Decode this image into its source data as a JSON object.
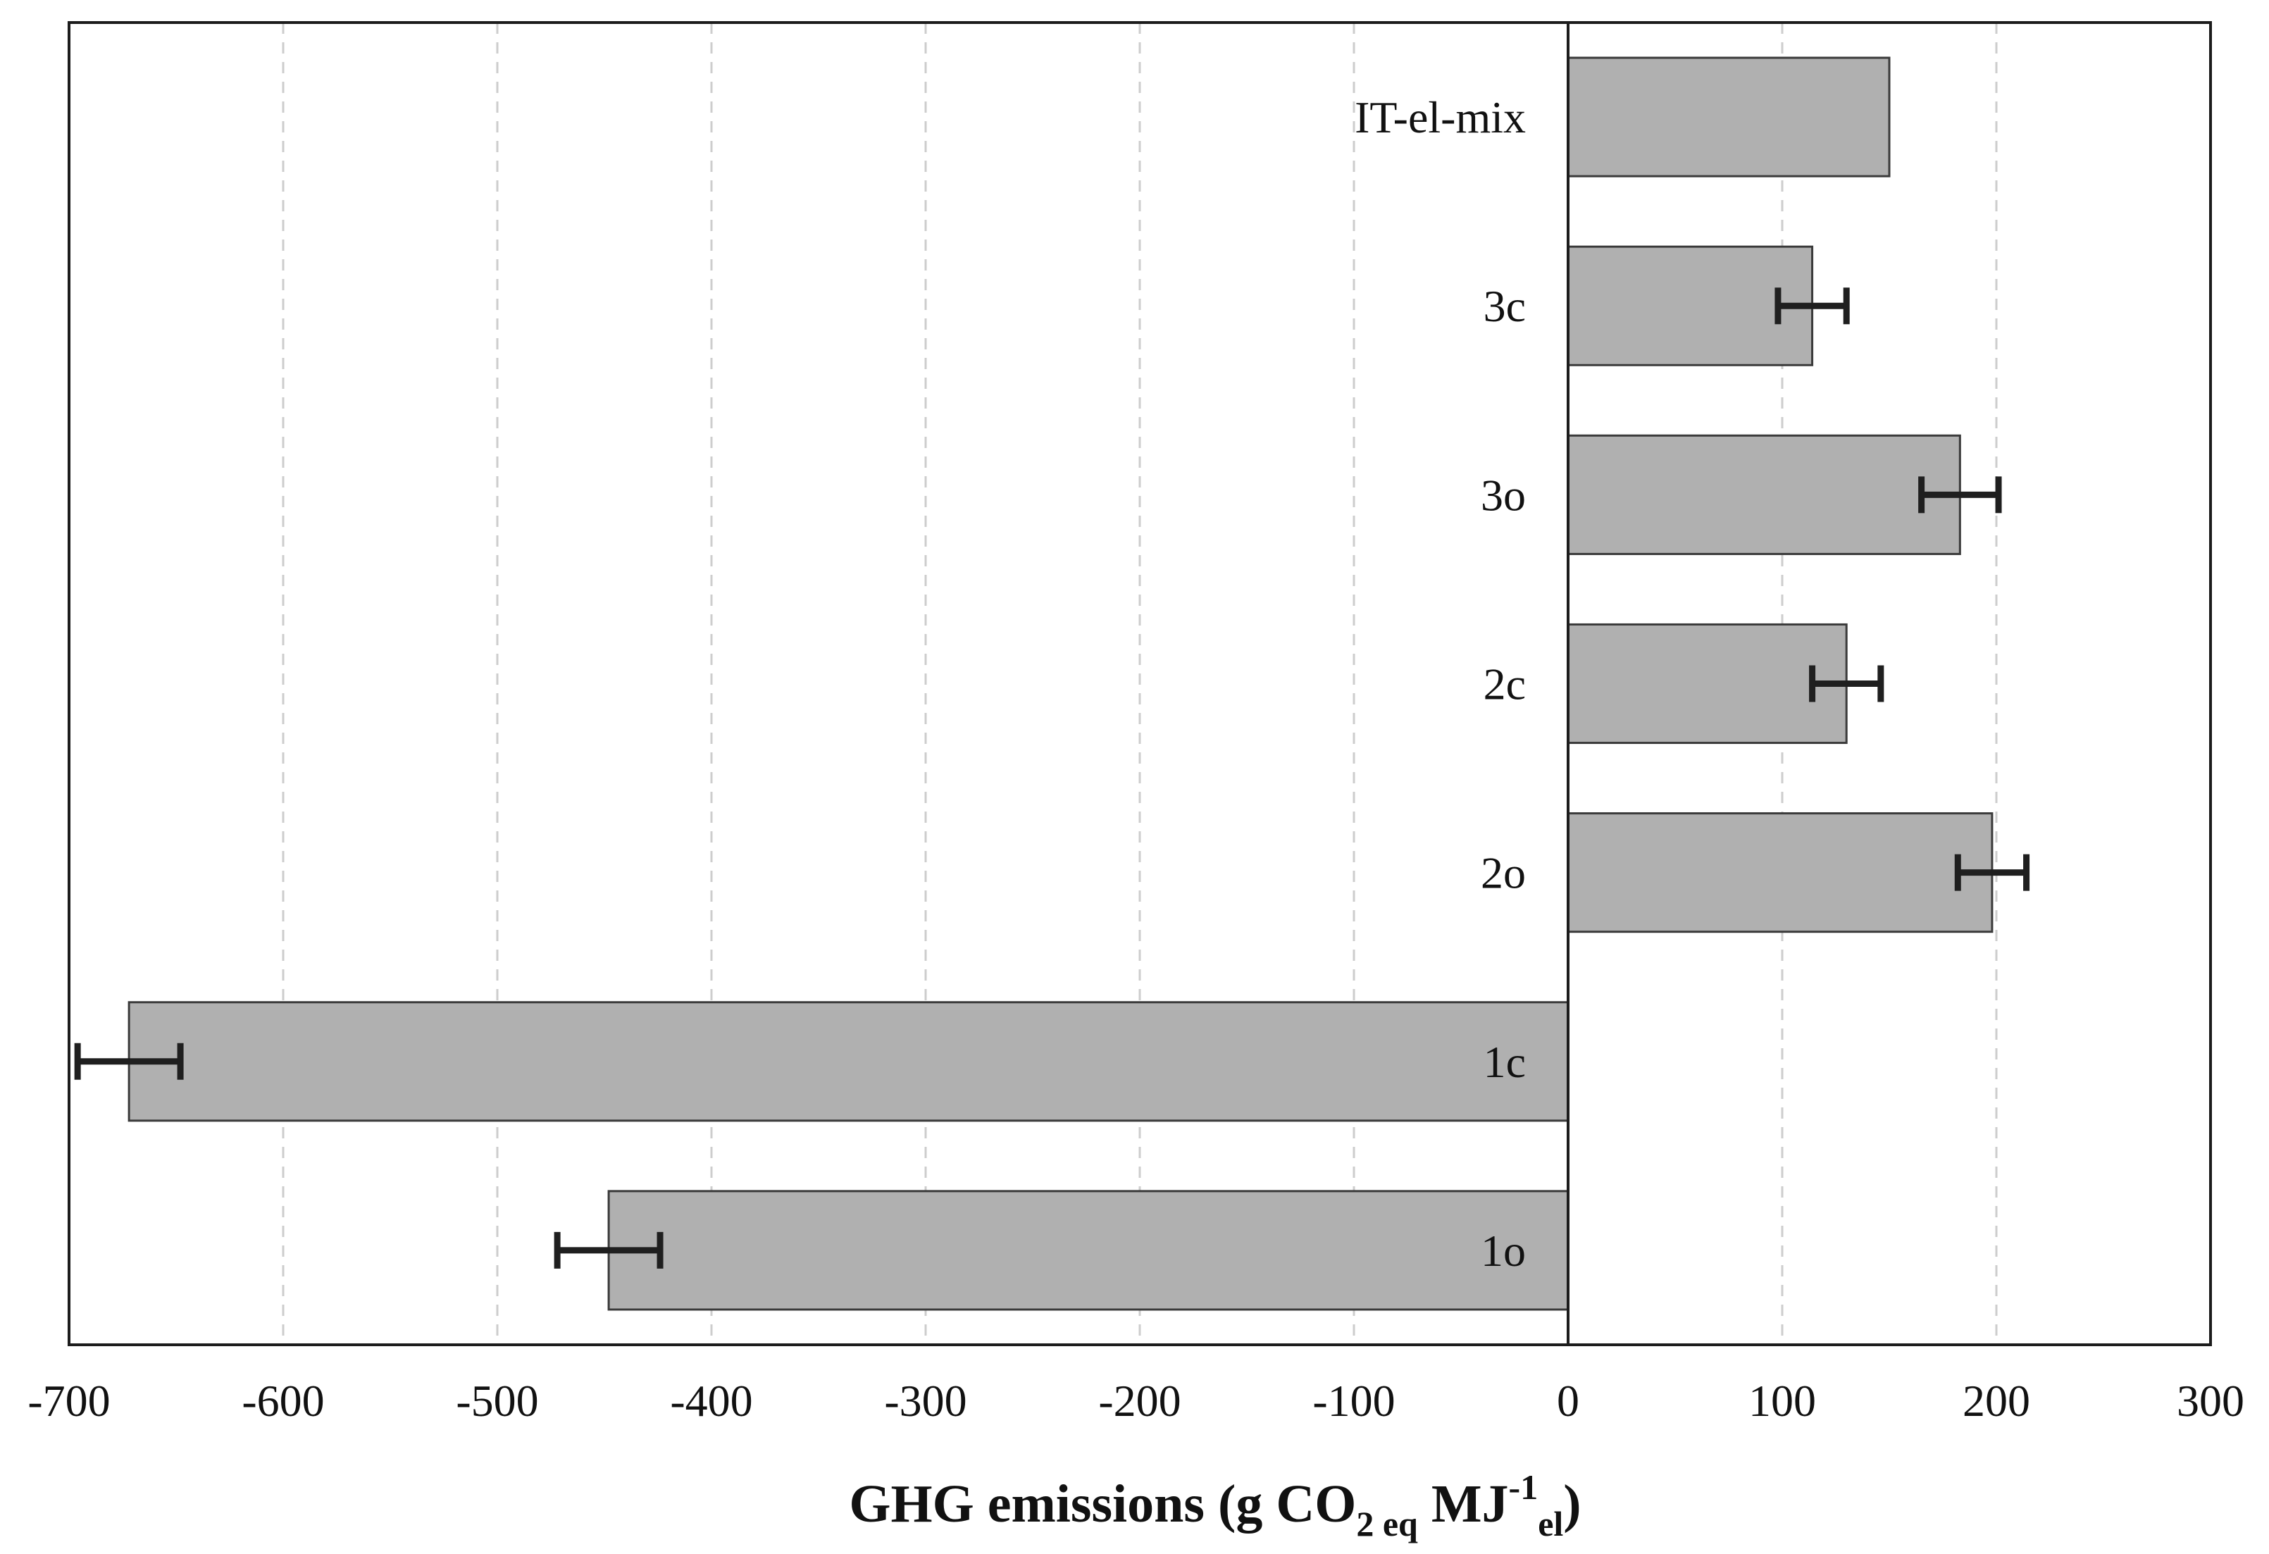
{
  "chart_data": {
    "type": "bar",
    "orientation": "horizontal",
    "title": "",
    "categories": [
      "IT-el-mix",
      "3c",
      "3o",
      "2c",
      "2o",
      "1c",
      "1o"
    ],
    "values": [
      150,
      114,
      183,
      130,
      198,
      -672,
      -448
    ],
    "errors": [
      null,
      16,
      18,
      16,
      16,
      24,
      24
    ],
    "xlabel": "GHG emissions (g CO2 eq MJ-1 el)",
    "xlabel_parts": [
      {
        "text": "GHG emissions (g CO",
        "script": "normal"
      },
      {
        "text": "2 eq",
        "script": "sub"
      },
      {
        "text": " MJ",
        "script": "normal"
      },
      {
        "text": "-1",
        "script": "sup"
      },
      {
        "text": "el",
        "script": "sub"
      },
      {
        "text": ")",
        "script": "normal"
      }
    ],
    "ylabel": "",
    "xlim": [
      -700,
      300
    ],
    "xticks": [
      -700,
      -600,
      -500,
      -400,
      -300,
      -200,
      -100,
      0,
      100,
      200,
      300
    ],
    "grid": "vertical-dashed",
    "legend": "none",
    "colors": {
      "bar_fill": "#b0b0b0",
      "bar_border": "#3a3a3a",
      "error_bar": "#1f1f1f",
      "gridline": "#cdcdcd",
      "axis": "#1c1c1c",
      "background": "#ffffff",
      "text": "#111111"
    }
  }
}
